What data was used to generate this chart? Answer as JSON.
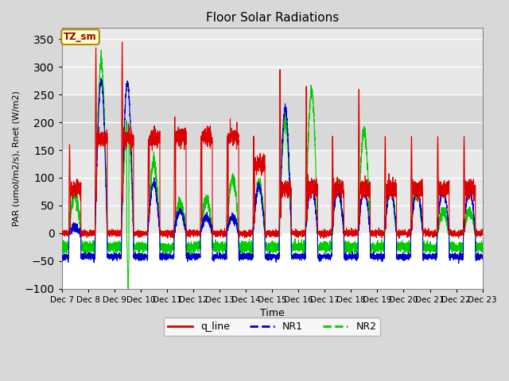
{
  "title": "Floor Solar Radiations",
  "xlabel": "Time",
  "ylabel": "PAR (umol/m2/s), Rnet (W/m2)",
  "ylim": [
    -100,
    370
  ],
  "yticks": [
    -100,
    -50,
    0,
    50,
    100,
    150,
    200,
    250,
    300,
    350
  ],
  "annotation_text": "TZ_sm",
  "annotation_bg": "#ffffcc",
  "annotation_border": "#b8860b",
  "line_colors": {
    "q_line": "#dd0000",
    "NR1": "#0000cc",
    "NR2": "#00cc00"
  },
  "bg_color": "#d8d8d8",
  "plot_bg": "#ffffff",
  "band1_color": "#e8e8e8",
  "band2_color": "#d8d8d8",
  "grid_color": "#ffffff",
  "n_days": 16,
  "start_day": 7,
  "end_day": 22,
  "points_per_day": 288,
  "night_nr1": -42,
  "night_nr2": -25
}
